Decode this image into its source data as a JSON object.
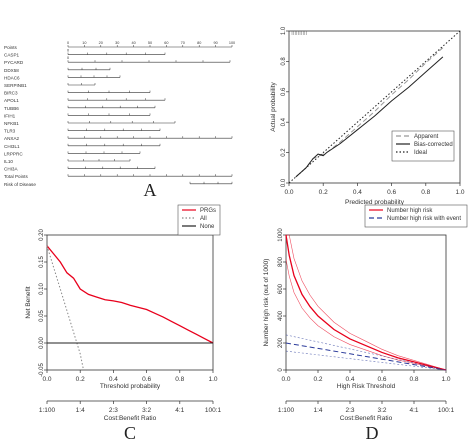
{
  "panel_letters": [
    "A",
    "B",
    "C",
    "D"
  ],
  "chart_data": [
    {
      "panel": "A",
      "type": "table",
      "rows": [
        {
          "label": "Points",
          "ticks": [
            "0",
            "10",
            "20",
            "30",
            "40",
            "50",
            "60",
            "70",
            "80",
            "90",
            "100"
          ]
        },
        {
          "label": "CASP1",
          "ticks": [
            "0",
            "",
            "",
            "",
            "",
            ""
          ]
        },
        {
          "label": "PYCARD",
          "ticks": [
            "0",
            "",
            "",
            "",
            "",
            "",
            ""
          ]
        },
        {
          "label": "DDX58",
          "ticks": [
            "",
            "",
            "",
            ""
          ]
        },
        {
          "label": "HDAC6",
          "ticks": [
            "",
            "",
            "",
            "",
            ""
          ]
        },
        {
          "label": "SERPINB1",
          "ticks": [
            "",
            "",
            ""
          ]
        },
        {
          "label": "BIRC3",
          "ticks": [
            "",
            "",
            "",
            "",
            ""
          ]
        },
        {
          "label": "APOL1",
          "ticks": [
            "",
            "",
            "",
            "",
            "",
            ""
          ]
        },
        {
          "label": "TUBB6",
          "ticks": [
            "",
            "",
            "",
            "",
            "",
            ""
          ]
        },
        {
          "label": "IFIH1",
          "ticks": [
            "",
            "",
            "",
            "",
            ""
          ]
        },
        {
          "label": "NFKB1",
          "ticks": [
            "",
            "",
            "",
            "",
            "",
            ""
          ]
        },
        {
          "label": "TLR3",
          "ticks": [
            "",
            "",
            "",
            "",
            "",
            ""
          ]
        },
        {
          "label": "ANXA2",
          "ticks": [
            "",
            "",
            "",
            "",
            "",
            "",
            "",
            "",
            "",
            "",
            ""
          ]
        },
        {
          "label": "CHI3L1",
          "ticks": [
            "",
            "",
            "",
            "",
            "",
            ""
          ]
        },
        {
          "label": "LRPPRC",
          "ticks": [
            "",
            "",
            "",
            "",
            ""
          ]
        },
        {
          "label": "IL10",
          "ticks": [
            "",
            "",
            "",
            "",
            ""
          ]
        },
        {
          "label": "CHI3A",
          "ticks": [
            "",
            "",
            "",
            "",
            "",
            ""
          ]
        },
        {
          "label": "Total Points",
          "ticks": [
            "",
            "",
            "",
            "",
            "",
            "",
            "",
            "",
            "",
            "",
            ""
          ]
        },
        {
          "label": "Risk of Disease",
          "ticks": [
            "",
            "",
            "",
            ""
          ]
        }
      ]
    },
    {
      "panel": "B",
      "type": "line",
      "xlabel": "Predicted probability",
      "ylabel": "Actual probability",
      "xlim": [
        0,
        1
      ],
      "ylim": [
        0,
        1
      ],
      "xticks": [
        "0.0",
        "0.2",
        "0.4",
        "0.6",
        "0.8",
        "1.0"
      ],
      "yticks": [
        "0.0",
        "0.2",
        "0.4",
        "0.6",
        "0.8",
        "1.0"
      ],
      "legend": "bottom-right",
      "series": [
        {
          "name": "Apparent",
          "style": "dashed",
          "color": "#999999",
          "x": [
            0.04,
            0.1,
            0.14,
            0.18,
            0.22,
            0.3,
            0.4,
            0.5,
            0.6,
            0.7,
            0.8,
            0.9
          ],
          "y": [
            0.04,
            0.1,
            0.16,
            0.18,
            0.2,
            0.27,
            0.37,
            0.47,
            0.58,
            0.68,
            0.79,
            0.89
          ]
        },
        {
          "name": "Bias-corrected",
          "style": "solid",
          "color": "#222222",
          "x": [
            0.04,
            0.1,
            0.14,
            0.17,
            0.2,
            0.22,
            0.3,
            0.4,
            0.5,
            0.6,
            0.7,
            0.8,
            0.9
          ],
          "y": [
            0.04,
            0.1,
            0.16,
            0.19,
            0.18,
            0.2,
            0.26,
            0.35,
            0.44,
            0.54,
            0.63,
            0.73,
            0.83
          ]
        },
        {
          "name": "Ideal",
          "style": "dotted",
          "color": "#222222",
          "x": [
            0,
            1
          ],
          "y": [
            0,
            1
          ]
        }
      ]
    },
    {
      "panel": "C",
      "type": "line",
      "xlabel": "Threshold probability",
      "ylabel": "Net Benefit",
      "x2label": "Cost:Benefit Ratio",
      "xlim": [
        0,
        1
      ],
      "ylim": [
        -0.05,
        0.2
      ],
      "xticks": [
        "0.0",
        "0.2",
        "0.4",
        "0.6",
        "0.8",
        "1.0"
      ],
      "yticks": [
        "-0.05",
        "0.00",
        "0.05",
        "0.10",
        "0.15",
        "0.20"
      ],
      "x2ticks": [
        "1:100",
        "1:4",
        "2:3",
        "3:2",
        "4:1",
        "100:1"
      ],
      "legend": "top-right",
      "series": [
        {
          "name": "PRGs",
          "color": "#e8001c",
          "x": [
            0,
            0.04,
            0.08,
            0.12,
            0.16,
            0.2,
            0.25,
            0.3,
            0.35,
            0.4,
            0.45,
            0.5,
            0.55,
            0.6,
            0.65,
            0.7,
            0.75,
            0.8,
            0.85,
            0.9,
            0.95,
            1.0
          ],
          "y": [
            0.18,
            0.165,
            0.15,
            0.13,
            0.12,
            0.1,
            0.09,
            0.085,
            0.08,
            0.078,
            0.075,
            0.07,
            0.066,
            0.062,
            0.055,
            0.048,
            0.04,
            0.032,
            0.024,
            0.016,
            0.008,
            0.0
          ]
        },
        {
          "name": "All",
          "color": "#888888",
          "style": "dotted",
          "x": [
            0,
            0.05,
            0.1,
            0.15,
            0.2,
            0.22
          ],
          "y": [
            0.18,
            0.13,
            0.08,
            0.03,
            -0.02,
            -0.05
          ]
        },
        {
          "name": "None",
          "color": "#222222",
          "x": [
            0,
            1
          ],
          "y": [
            0,
            0
          ]
        }
      ]
    },
    {
      "panel": "D",
      "type": "line",
      "xlabel": "High Risk Threshold",
      "ylabel": "Number high risk (out of 1000)",
      "x2label": "Cost:Benefit Ratio",
      "xlim": [
        0,
        1
      ],
      "ylim": [
        0,
        1000
      ],
      "xticks": [
        "0.0",
        "0.2",
        "0.4",
        "0.6",
        "0.8",
        "1.0"
      ],
      "yticks": [
        "0",
        "200",
        "400",
        "600",
        "800",
        "1000"
      ],
      "x2ticks": [
        "1:100",
        "1:4",
        "2:3",
        "3:2",
        "4:1",
        "100:1"
      ],
      "legend": "top-right",
      "series": [
        {
          "name": "Number high risk",
          "color": "#e8001c",
          "x": [
            0,
            0.02,
            0.05,
            0.1,
            0.15,
            0.2,
            0.3,
            0.4,
            0.5,
            0.6,
            0.7,
            0.8,
            0.9,
            1.0
          ],
          "y": [
            1000,
            850,
            700,
            560,
            470,
            400,
            300,
            230,
            180,
            130,
            90,
            60,
            30,
            0
          ]
        },
        {
          "name": "Number high risk with event",
          "color": "#2a3a9a",
          "style": "dashed",
          "x": [
            0,
            0.05,
            0.1,
            0.2,
            0.3,
            0.4,
            0.5,
            0.6,
            0.7,
            0.8,
            0.9,
            1.0
          ],
          "y": [
            200,
            190,
            180,
            160,
            140,
            120,
            100,
            80,
            60,
            40,
            20,
            0
          ]
        }
      ]
    }
  ]
}
